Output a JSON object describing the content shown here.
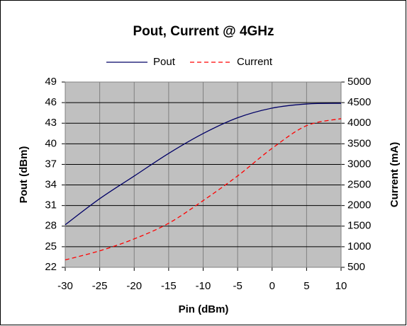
{
  "chart_data": {
    "type": "line",
    "title": "Pout, Current @ 4GHz",
    "x_label": "Pin (dBm)",
    "y_label": "Pout  (dBm)",
    "y2_label": "Current (mA)",
    "x": [
      -30,
      -25,
      -20,
      -15,
      -10,
      -5,
      0,
      5,
      10
    ],
    "series": [
      {
        "name": "Pout",
        "color": "#000066",
        "values": [
          28.2,
          32.0,
          35.3,
          38.6,
          41.5,
          43.8,
          45.2,
          45.8,
          45.9
        ]
      },
      {
        "name": "Current",
        "color": "#ff0000",
        "dashed": true,
        "axis": "y2",
        "values": [
          680,
          900,
          1190,
          1570,
          2120,
          2720,
          3390,
          3940,
          4110
        ]
      }
    ],
    "xlim": [
      -30,
      10
    ],
    "xticks": [
      -30,
      -25,
      -20,
      -15,
      -10,
      -5,
      0,
      5,
      10
    ],
    "ylim": [
      22,
      49
    ],
    "yticks": [
      22,
      25,
      28,
      31,
      34,
      37,
      40,
      43,
      46,
      49
    ],
    "y2lim": [
      500,
      5000
    ],
    "y2ticks": [
      500,
      1000,
      1500,
      2000,
      2500,
      3000,
      3500,
      4000,
      4500,
      5000
    ],
    "grid": true,
    "legend": "top"
  }
}
